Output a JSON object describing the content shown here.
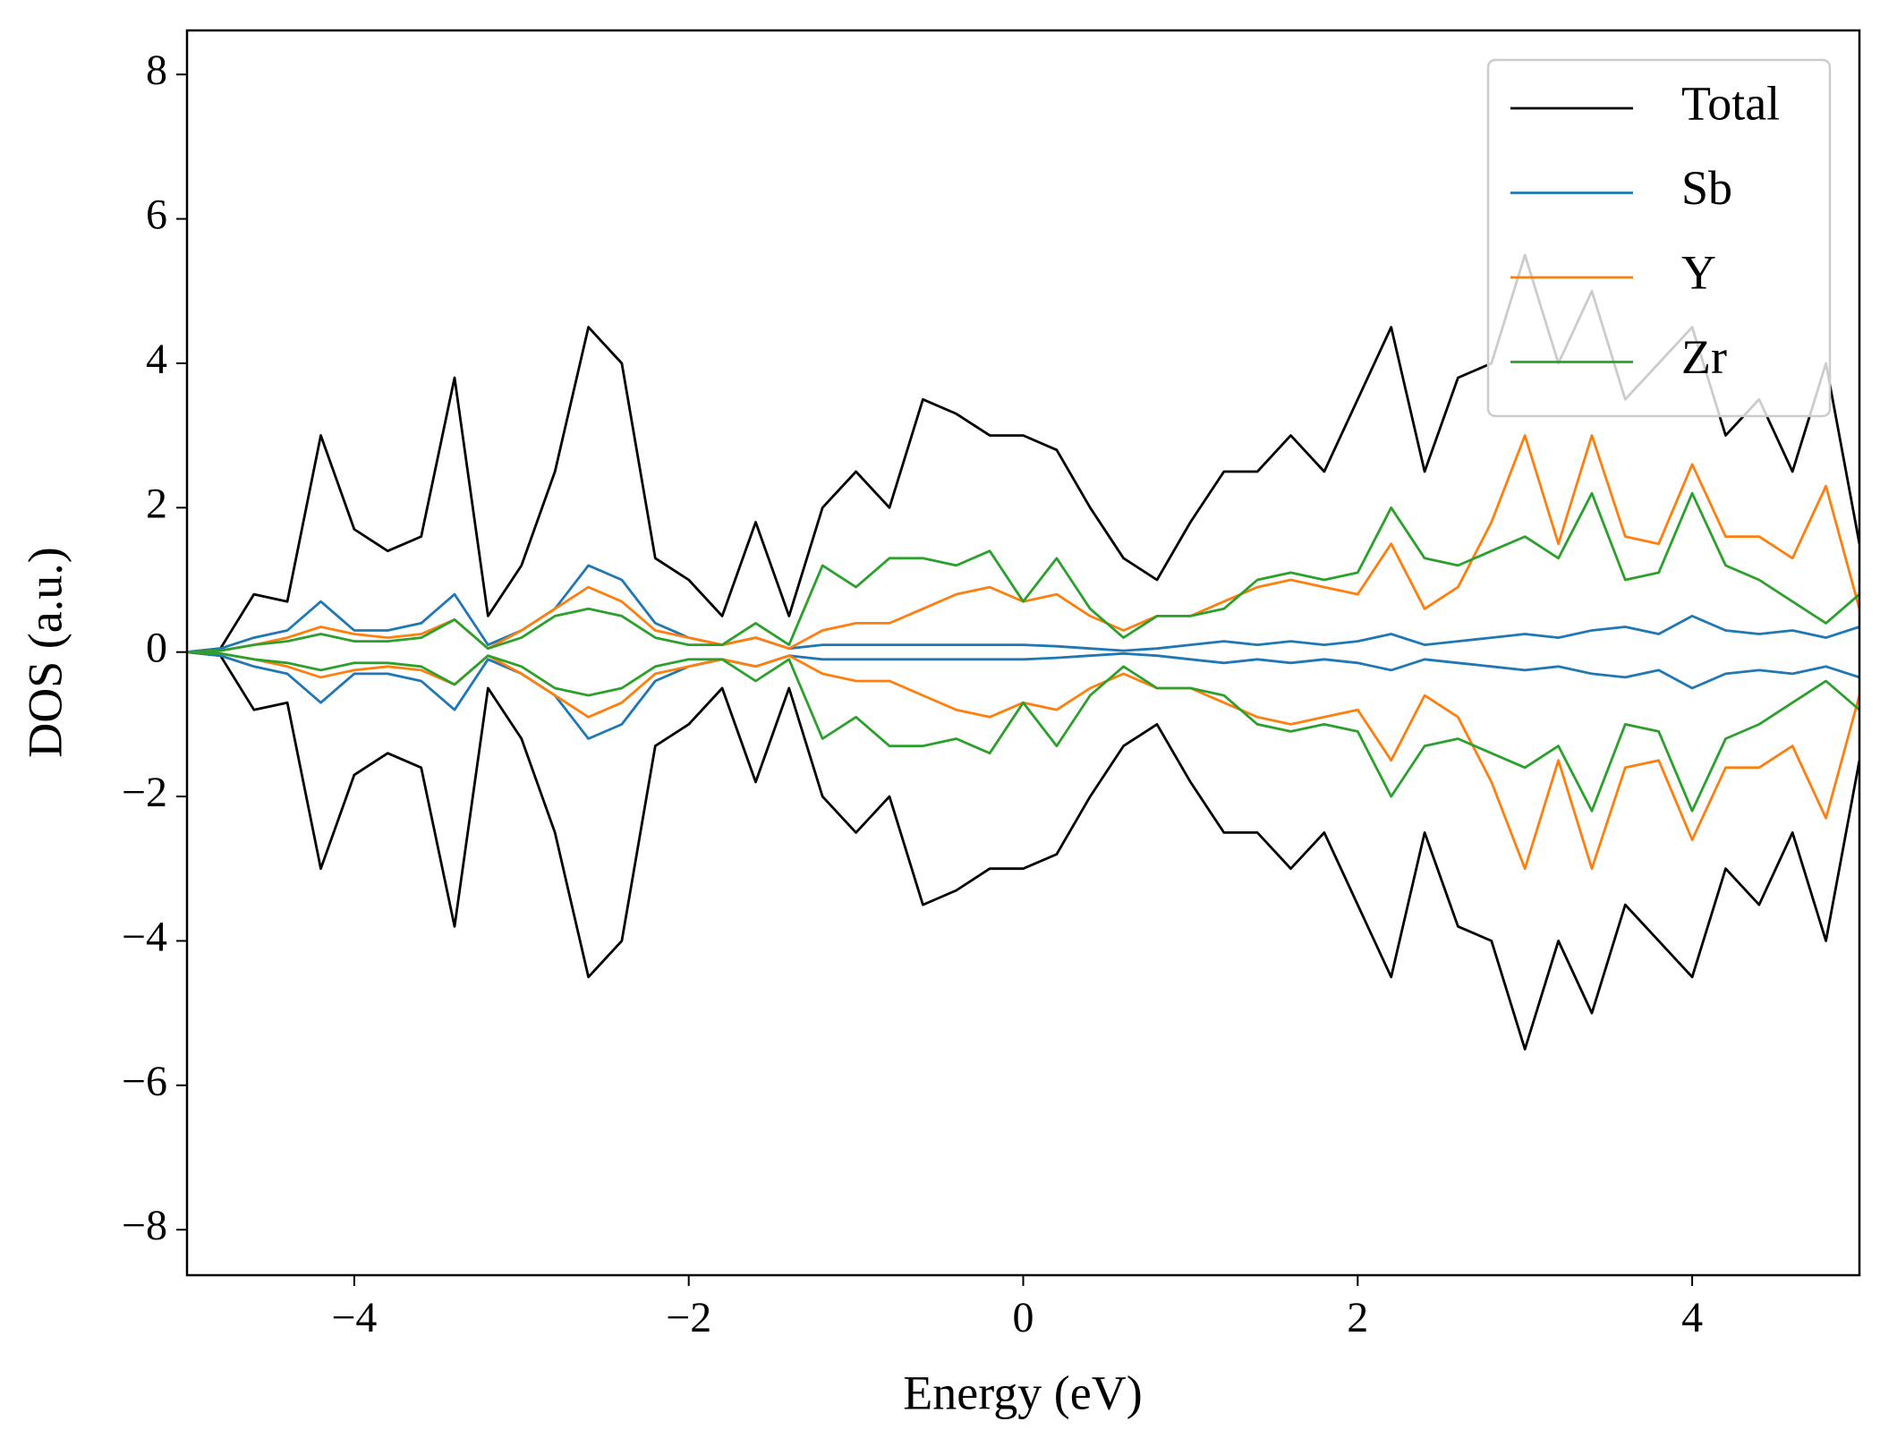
{
  "chart_data": {
    "type": "line",
    "xlabel": "Energy (eV)",
    "ylabel": "DOS (a.u.)",
    "xlim": [
      -5,
      5
    ],
    "ylim": [
      -8.63,
      8.61
    ],
    "xticks": [
      {
        "value": -4,
        "label": "−4"
      },
      {
        "value": -2,
        "label": "−2"
      },
      0,
      2,
      4
    ],
    "yticks": [
      {
        "value": -8,
        "label": "−8"
      },
      {
        "value": -6,
        "label": "−6"
      },
      {
        "value": -4,
        "label": "−4"
      },
      {
        "value": -2,
        "label": "−2"
      },
      0,
      2,
      4,
      6,
      8
    ],
    "legend": "upper right",
    "x": [
      -5,
      -4.8,
      -4.6,
      -4.4,
      -4.2,
      -4,
      -3.8,
      -3.6,
      -3.4,
      -3.2,
      -3,
      -2.8,
      -2.6,
      -2.4,
      -2.2,
      -2,
      -1.8,
      -1.6,
      -1.4,
      -1.2,
      -1,
      -0.8,
      -0.6,
      -0.4,
      -0.2,
      0,
      0.2,
      0.4,
      0.6,
      0.8,
      1,
      1.2,
      1.4,
      1.6,
      1.8,
      2,
      2.2,
      2.4,
      2.6,
      2.8,
      3,
      3.2,
      3.4,
      3.6,
      3.8,
      4,
      4.2,
      4.4,
      4.6,
      4.8,
      5
    ],
    "series": [
      {
        "name": "Total",
        "color": "#000000",
        "values": [
          0,
          0.05,
          0.8,
          0.7,
          3.0,
          1.7,
          1.4,
          1.6,
          3.8,
          0.5,
          1.2,
          2.5,
          4.5,
          4.0,
          1.3,
          1.0,
          0.5,
          1.8,
          0.5,
          2.0,
          2.5,
          2.0,
          3.5,
          3.3,
          3.0,
          3.0,
          2.8,
          2.0,
          1.3,
          1.0,
          1.8,
          2.5,
          2.5,
          3.0,
          2.5,
          3.5,
          4.5,
          2.5,
          3.8,
          4.0,
          5.5,
          4.0,
          5.0,
          3.5,
          4.0,
          4.5,
          3.0,
          3.5,
          2.5,
          4.0,
          1.5
        ],
        "values_down": [
          0,
          -0.05,
          -0.8,
          -0.7,
          -3.0,
          -1.7,
          -1.4,
          -1.6,
          -3.8,
          -0.5,
          -1.2,
          -2.5,
          -4.5,
          -4.0,
          -1.3,
          -1.0,
          -0.5,
          -1.8,
          -0.5,
          -2.0,
          -2.5,
          -2.0,
          -3.5,
          -3.3,
          -3.0,
          -3.0,
          -2.8,
          -2.0,
          -1.3,
          -1.0,
          -1.8,
          -2.5,
          -2.5,
          -3.0,
          -2.5,
          -3.5,
          -4.5,
          -2.5,
          -3.8,
          -4.0,
          -5.5,
          -4.0,
          -5.0,
          -3.5,
          -4.0,
          -4.5,
          -3.0,
          -3.5,
          -2.5,
          -4.0,
          -1.5
        ]
      },
      {
        "name": "Sb",
        "color": "#1f77b4",
        "values": [
          0,
          0.05,
          0.2,
          0.3,
          0.7,
          0.3,
          0.3,
          0.4,
          0.8,
          0.1,
          0.3,
          0.6,
          1.2,
          1.0,
          0.4,
          0.2,
          0.1,
          0.2,
          0.05,
          0.1,
          0.1,
          0.1,
          0.1,
          0.1,
          0.1,
          0.1,
          0.08,
          0.05,
          0.02,
          0.05,
          0.1,
          0.15,
          0.1,
          0.15,
          0.1,
          0.15,
          0.25,
          0.1,
          0.15,
          0.2,
          0.25,
          0.2,
          0.3,
          0.35,
          0.25,
          0.5,
          0.3,
          0.25,
          0.3,
          0.2,
          0.35
        ],
        "values_down": [
          0,
          -0.05,
          -0.2,
          -0.3,
          -0.7,
          -0.3,
          -0.3,
          -0.4,
          -0.8,
          -0.1,
          -0.3,
          -0.6,
          -1.2,
          -1.0,
          -0.4,
          -0.2,
          -0.1,
          -0.2,
          -0.05,
          -0.1,
          -0.1,
          -0.1,
          -0.1,
          -0.1,
          -0.1,
          -0.1,
          -0.08,
          -0.05,
          -0.02,
          -0.05,
          -0.1,
          -0.15,
          -0.1,
          -0.15,
          -0.1,
          -0.15,
          -0.25,
          -0.1,
          -0.15,
          -0.2,
          -0.25,
          -0.2,
          -0.3,
          -0.35,
          -0.25,
          -0.5,
          -0.3,
          -0.25,
          -0.3,
          -0.2,
          -0.35
        ]
      },
      {
        "name": "Y",
        "color": "#ff7f0e",
        "values": [
          0,
          0.02,
          0.1,
          0.2,
          0.35,
          0.25,
          0.2,
          0.25,
          0.45,
          0.05,
          0.3,
          0.6,
          0.9,
          0.7,
          0.3,
          0.2,
          0.1,
          0.2,
          0.05,
          0.3,
          0.4,
          0.4,
          0.6,
          0.8,
          0.9,
          0.7,
          0.8,
          0.5,
          0.3,
          0.5,
          0.5,
          0.7,
          0.9,
          1.0,
          0.9,
          0.8,
          1.5,
          0.6,
          0.9,
          1.8,
          3.0,
          1.5,
          3.0,
          1.6,
          1.5,
          2.6,
          1.6,
          1.6,
          1.3,
          2.3,
          0.6
        ],
        "values_down": [
          0,
          -0.02,
          -0.1,
          -0.2,
          -0.35,
          -0.25,
          -0.2,
          -0.25,
          -0.45,
          -0.05,
          -0.3,
          -0.6,
          -0.9,
          -0.7,
          -0.3,
          -0.2,
          -0.1,
          -0.2,
          -0.05,
          -0.3,
          -0.4,
          -0.4,
          -0.6,
          -0.8,
          -0.9,
          -0.7,
          -0.8,
          -0.5,
          -0.3,
          -0.5,
          -0.5,
          -0.7,
          -0.9,
          -1.0,
          -0.9,
          -0.8,
          -1.5,
          -0.6,
          -0.9,
          -1.8,
          -3.0,
          -1.5,
          -3.0,
          -1.6,
          -1.5,
          -2.6,
          -1.6,
          -1.6,
          -1.3,
          -2.3,
          -0.6
        ]
      },
      {
        "name": "Zr",
        "color": "#2ca02c",
        "values": [
          0,
          0.02,
          0.1,
          0.15,
          0.25,
          0.15,
          0.15,
          0.2,
          0.45,
          0.05,
          0.2,
          0.5,
          0.6,
          0.5,
          0.2,
          0.1,
          0.1,
          0.4,
          0.1,
          1.2,
          0.9,
          1.3,
          1.3,
          1.2,
          1.4,
          0.7,
          1.3,
          0.6,
          0.2,
          0.5,
          0.5,
          0.6,
          1.0,
          1.1,
          1.0,
          1.1,
          2.0,
          1.3,
          1.2,
          1.4,
          1.6,
          1.3,
          2.2,
          1.0,
          1.1,
          2.2,
          1.2,
          1.0,
          0.7,
          0.4,
          0.8
        ],
        "values_down": [
          0,
          -0.02,
          -0.1,
          -0.15,
          -0.25,
          -0.15,
          -0.15,
          -0.2,
          -0.45,
          -0.05,
          -0.2,
          -0.5,
          -0.6,
          -0.5,
          -0.2,
          -0.1,
          -0.1,
          -0.4,
          -0.1,
          -1.2,
          -0.9,
          -1.3,
          -1.3,
          -1.2,
          -1.4,
          -0.7,
          -1.3,
          -0.6,
          -0.2,
          -0.5,
          -0.5,
          -0.6,
          -1.0,
          -1.1,
          -1.0,
          -1.1,
          -2.0,
          -1.3,
          -1.2,
          -1.4,
          -1.6,
          -1.3,
          -2.2,
          -1.0,
          -1.1,
          -2.2,
          -1.2,
          -1.0,
          -0.7,
          -0.4,
          -0.8
        ]
      }
    ]
  }
}
